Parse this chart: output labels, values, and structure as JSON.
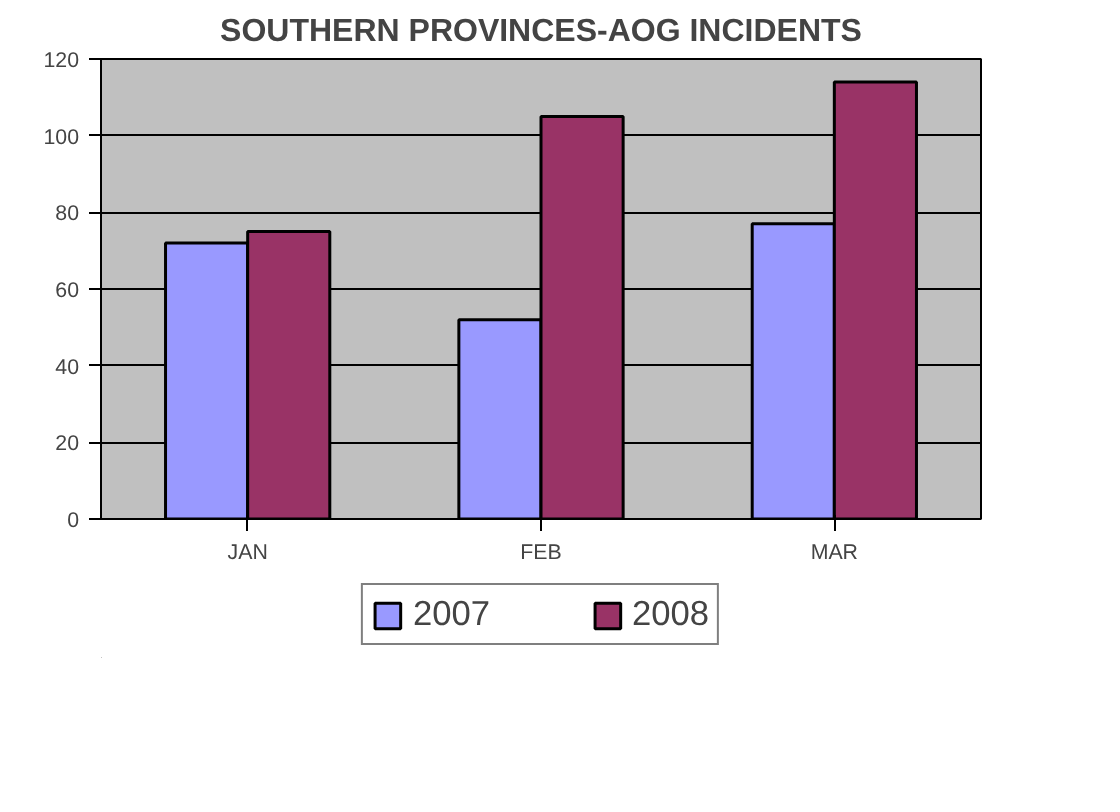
{
  "chart_data": {
    "type": "bar",
    "title": "SOUTHERN PROVINCES-AOG INCIDENTS",
    "categories": [
      "JAN",
      "FEB",
      "MAR"
    ],
    "series": [
      {
        "name": "2007",
        "color": "#9999ff",
        "values": [
          72,
          52,
          77
        ]
      },
      {
        "name": "2008",
        "color": "#993366",
        "values": [
          75,
          105,
          114
        ]
      }
    ],
    "ylim": [
      0,
      120
    ],
    "yticks": [
      0,
      20,
      40,
      60,
      80,
      100,
      120
    ],
    "grid": "y",
    "legend": "bottom"
  }
}
